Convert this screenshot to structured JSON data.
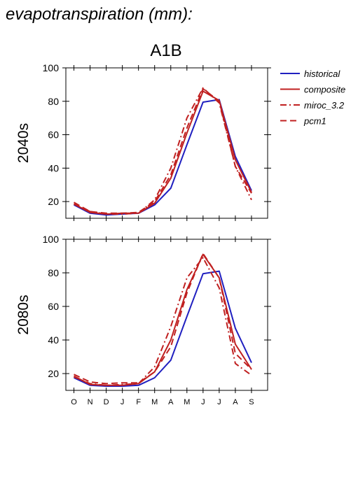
{
  "figure": {
    "title": "evapotranspiration (mm):",
    "scenario": "A1B"
  },
  "legend": {
    "entries": [
      {
        "label": "historical",
        "color": "#2020c0",
        "dash": "solid"
      },
      {
        "label": "composite",
        "color": "#c02020",
        "dash": "solid"
      },
      {
        "label": "miroc_3.2",
        "color": "#c02020",
        "dash": "dashdot"
      },
      {
        "label": "pcm1",
        "color": "#c02020",
        "dash": "dashed"
      }
    ]
  },
  "chart_data": [
    {
      "type": "line",
      "panel_label": "2040s",
      "categories": [
        "O",
        "N",
        "D",
        "J",
        "F",
        "M",
        "A",
        "M",
        "J",
        "J",
        "A",
        "S"
      ],
      "ylim": [
        10,
        100
      ],
      "yticks": [
        20,
        40,
        60,
        80,
        100
      ],
      "series": [
        {
          "name": "historical",
          "values": [
            18,
            13,
            12,
            12.5,
            13,
            18,
            28,
            54,
            79.5,
            81,
            47,
            26.5
          ]
        },
        {
          "name": "composite",
          "values": [
            18.5,
            13.5,
            12.5,
            13,
            13,
            19,
            34,
            61,
            86,
            80.5,
            45,
            25.5
          ]
        },
        {
          "name": "miroc_3.2",
          "values": [
            18.5,
            14,
            12.5,
            12.5,
            13,
            21,
            40,
            70,
            88,
            79,
            41,
            21
          ]
        },
        {
          "name": "pcm1",
          "values": [
            19.5,
            14,
            13,
            13,
            13.5,
            20,
            36,
            64,
            87.5,
            80,
            41,
            25
          ]
        }
      ]
    },
    {
      "type": "line",
      "panel_label": "2080s",
      "categories": [
        "O",
        "N",
        "D",
        "J",
        "F",
        "M",
        "A",
        "M",
        "J",
        "J",
        "A",
        "S"
      ],
      "ylim": [
        10,
        100
      ],
      "yticks": [
        20,
        40,
        60,
        80,
        100
      ],
      "series": [
        {
          "name": "historical",
          "values": [
            17.5,
            13,
            12.5,
            12.5,
            13,
            17.5,
            28,
            54,
            79.5,
            81,
            47,
            26.5
          ]
        },
        {
          "name": "composite",
          "values": [
            18.5,
            13.5,
            13,
            13,
            14,
            21,
            40,
            70,
            91,
            77,
            37.5,
            22.5
          ]
        },
        {
          "name": "miroc_3.2",
          "values": [
            18,
            14,
            13,
            13.5,
            14,
            24,
            48,
            77,
            89,
            71,
            26,
            19
          ]
        },
        {
          "name": "pcm1",
          "values": [
            19.5,
            15,
            14,
            14.5,
            14.5,
            21,
            36,
            68,
            91.5,
            77,
            32,
            22.5
          ]
        }
      ]
    }
  ]
}
